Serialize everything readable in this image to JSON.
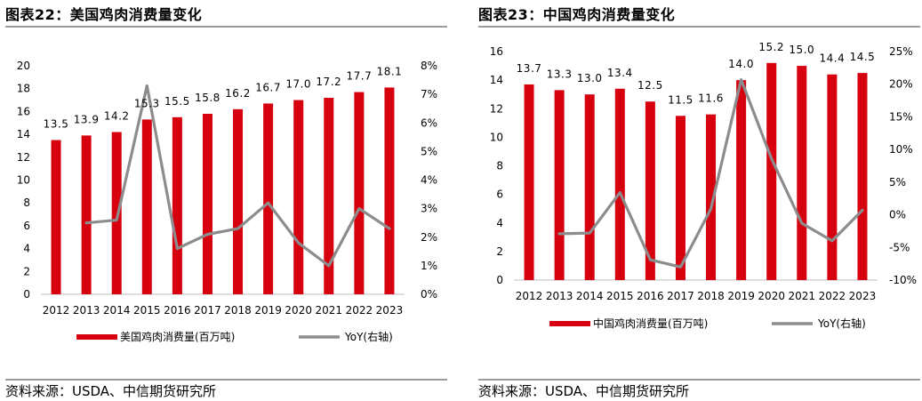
{
  "colors": {
    "bar": "#d7000f",
    "line": "#8c8c8c",
    "rule": "#9b9b9b"
  },
  "source_text": "资料来源：USDA、中信期货研究所",
  "chart_data": [
    {
      "type": "bar",
      "title": "图表22：美国鸡肉消费量变化",
      "categories": [
        "2012",
        "2013",
        "2014",
        "2015",
        "2016",
        "2017",
        "2018",
        "2019",
        "2020",
        "2021",
        "2022",
        "2023"
      ],
      "series": [
        {
          "name": "美国鸡肉消费量(百万吨)",
          "type": "bar",
          "axis": "left",
          "values": [
            13.5,
            13.9,
            14.2,
            15.3,
            15.5,
            15.8,
            16.2,
            16.7,
            17.0,
            17.2,
            17.7,
            18.1
          ],
          "labels": [
            "13.5",
            "13.9",
            "14.2",
            "15.3",
            "15.5",
            "15.8",
            "16.2",
            "16.7",
            "17.0",
            "17.2",
            "17.7",
            "18.1"
          ]
        },
        {
          "name": "YoY(右轴)",
          "type": "line",
          "axis": "right",
          "values": [
            null,
            2.5,
            2.6,
            7.3,
            1.6,
            2.1,
            2.3,
            3.2,
            1.8,
            1.0,
            3.0,
            2.3
          ]
        }
      ],
      "ylim": [
        0,
        20
      ],
      "y_ticks": [
        "0",
        "2",
        "4",
        "6",
        "8",
        "10",
        "12",
        "14",
        "16",
        "18",
        "20"
      ],
      "y2lim": [
        0,
        8
      ],
      "y2_ticks": [
        "0%",
        "1%",
        "2%",
        "3%",
        "4%",
        "5%",
        "6%",
        "7%",
        "8%"
      ],
      "legend": "bottom"
    },
    {
      "type": "bar",
      "title": "图表23：中国鸡肉消费量变化",
      "categories": [
        "2012",
        "2013",
        "2014",
        "2015",
        "2016",
        "2017",
        "2018",
        "2019",
        "2020",
        "2021",
        "2022",
        "2023"
      ],
      "series": [
        {
          "name": "中国鸡肉消费量(百万吨)",
          "type": "bar",
          "axis": "left",
          "values": [
            13.7,
            13.3,
            13.0,
            13.4,
            12.5,
            11.5,
            11.6,
            14.0,
            15.2,
            15.0,
            14.4,
            14.5
          ],
          "labels": [
            "13.7",
            "13.3",
            "13.0",
            "13.4",
            "12.5",
            "11.5",
            "11.6",
            "14.0",
            "15.2",
            "15.0",
            "14.4",
            "14.5"
          ]
        },
        {
          "name": "YoY(右轴)",
          "type": "line",
          "axis": "right",
          "values": [
            null,
            -2.9,
            -2.8,
            3.4,
            -6.9,
            -8.0,
            0.9,
            20.7,
            8.6,
            -1.3,
            -4.0,
            0.7
          ]
        }
      ],
      "ylim": [
        0,
        16
      ],
      "y_ticks": [
        "0",
        "2",
        "4",
        "6",
        "8",
        "10",
        "12",
        "14",
        "16"
      ],
      "y2lim": [
        -10,
        25
      ],
      "y2_ticks": [
        "-10%",
        "-5%",
        "0%",
        "5%",
        "10%",
        "15%",
        "20%",
        "25%"
      ],
      "legend": "bottom"
    }
  ]
}
